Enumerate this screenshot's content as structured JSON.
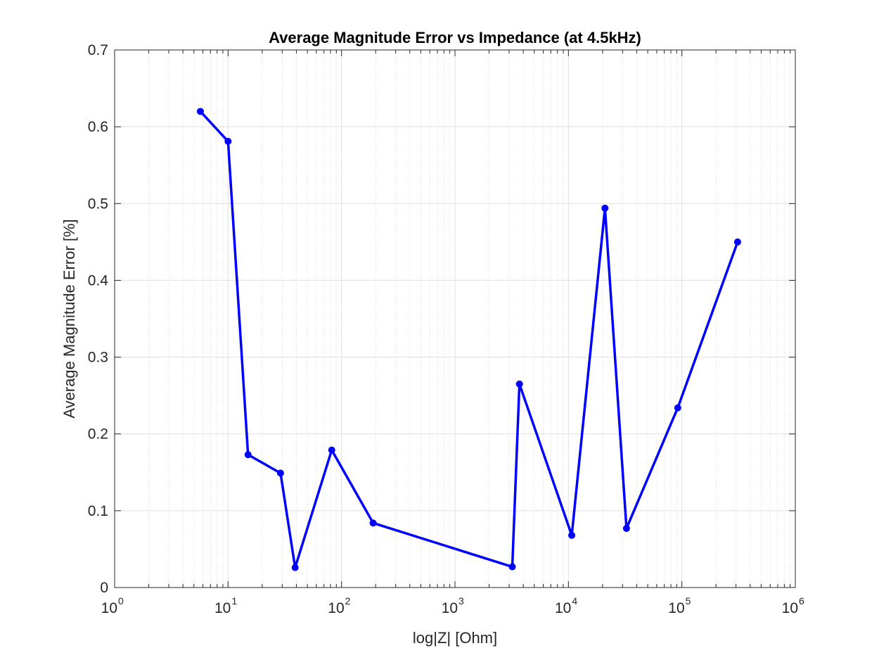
{
  "chart_data": {
    "type": "line",
    "title": "Average Magnitude Error vs Impedance (at 4.5kHz)",
    "xlabel": "log|Z| [Ohm]",
    "ylabel": "Average Magnitude Error [%]",
    "xscale": "log",
    "xlim": [
      1,
      1000000
    ],
    "ylim": [
      0,
      0.7
    ],
    "grid": true,
    "x_ticks": [
      {
        "base": "10",
        "exp": "0",
        "value": 1
      },
      {
        "base": "10",
        "exp": "1",
        "value": 10
      },
      {
        "base": "10",
        "exp": "2",
        "value": 100
      },
      {
        "base": "10",
        "exp": "3",
        "value": 1000
      },
      {
        "base": "10",
        "exp": "4",
        "value": 10000
      },
      {
        "base": "10",
        "exp": "5",
        "value": 100000
      },
      {
        "base": "10",
        "exp": "6",
        "value": 1000000
      }
    ],
    "y_ticks": [
      "0",
      "0.1",
      "0.2",
      "0.3",
      "0.4",
      "0.5",
      "0.6",
      "0.7"
    ],
    "series": [
      {
        "color": "#0000ff",
        "marker": "circle",
        "x": [
          5.7,
          10,
          15,
          29,
          39,
          82,
          190,
          3200,
          3700,
          10700,
          21000,
          32500,
          92000,
          310000
        ],
        "y": [
          0.62,
          0.581,
          0.173,
          0.149,
          0.026,
          0.179,
          0.084,
          0.027,
          0.265,
          0.068,
          0.494,
          0.077,
          0.234,
          0.45
        ]
      }
    ]
  }
}
